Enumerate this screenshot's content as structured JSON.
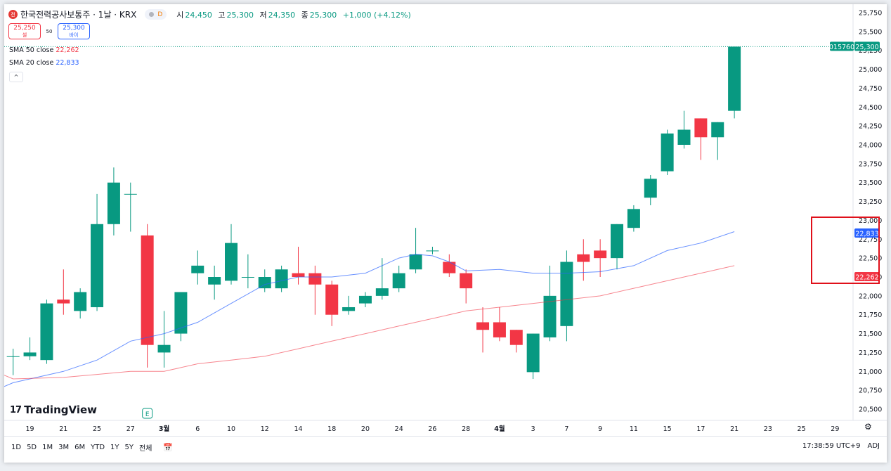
{
  "header": {
    "logo_text": "전",
    "symbol_title": "한국전력공사보통주 · 1날 · KRX",
    "delay_label": "D",
    "ohlc": [
      {
        "label": "시",
        "value": "24,450"
      },
      {
        "label": "고",
        "value": "25,300"
      },
      {
        "label": "저",
        "value": "24,350"
      },
      {
        "label": "종",
        "value": "25,300"
      }
    ],
    "change": "+1,000 (+4.12%)"
  },
  "trade": {
    "sell_price": "25,250",
    "sell_label": "셀",
    "spread": "50",
    "buy_price": "25,300",
    "buy_label": "바이"
  },
  "indicators": [
    {
      "name": "SMA 50 close",
      "value": "22,262",
      "color": "#f23645"
    },
    {
      "name": "SMA 20 close",
      "value": "22,833",
      "color": "#2962ff"
    }
  ],
  "collapse_glyph": "^",
  "last_price_label": {
    "code": "015760",
    "price": "25,300"
  },
  "sma_labels": {
    "sma20": "22,833",
    "sma50": "22,262"
  },
  "event_marker": "E",
  "logo": {
    "mark": "17",
    "text": "TradingView"
  },
  "footer": {
    "ranges": [
      "1D",
      "5D",
      "1M",
      "3M",
      "6M",
      "YTD",
      "1Y",
      "5Y",
      "전체"
    ],
    "time": "17:38:59 UTC+9",
    "adj": "ADJ"
  },
  "colors": {
    "up": "#089981",
    "down": "#f23645",
    "sma20": "#2962ff",
    "sma50": "#f23645"
  },
  "chart_data": {
    "type": "candlestick",
    "ylim": [
      20300,
      25800
    ],
    "y_ticks": [
      20500,
      20750,
      21000,
      21250,
      21500,
      21750,
      22000,
      22250,
      22500,
      22750,
      23000,
      23250,
      23500,
      23750,
      24000,
      24250,
      24500,
      24750,
      25000,
      25250,
      25500,
      25750
    ],
    "x_tick_labels": [
      {
        "label": "19",
        "i": 1
      },
      {
        "label": "21",
        "i": 3
      },
      {
        "label": "25",
        "i": 5
      },
      {
        "label": "27",
        "i": 7
      },
      {
        "label": "3월",
        "i": 9
      },
      {
        "label": "6",
        "i": 11
      },
      {
        "label": "10",
        "i": 13
      },
      {
        "label": "12",
        "i": 15
      },
      {
        "label": "14",
        "i": 17
      },
      {
        "label": "18",
        "i": 19
      },
      {
        "label": "20",
        "i": 21
      },
      {
        "label": "24",
        "i": 23
      },
      {
        "label": "26",
        "i": 25
      },
      {
        "label": "28",
        "i": 27
      },
      {
        "label": "4월",
        "i": 29
      },
      {
        "label": "3",
        "i": 31
      },
      {
        "label": "7",
        "i": 33
      },
      {
        "label": "9",
        "i": 35
      },
      {
        "label": "11",
        "i": 37
      },
      {
        "label": "15",
        "i": 39
      },
      {
        "label": "17",
        "i": 41
      },
      {
        "label": "21",
        "i": 43
      },
      {
        "label": "23",
        "i": 45
      },
      {
        "label": "25",
        "i": 47
      },
      {
        "label": "29",
        "i": 49
      }
    ],
    "candles": [
      {
        "i": 0,
        "o": 21200,
        "h": 21300,
        "l": 20950,
        "c": 21200
      },
      {
        "i": 1,
        "o": 21200,
        "h": 21450,
        "l": 21150,
        "c": 21250
      },
      {
        "i": 2,
        "o": 21150,
        "h": 21950,
        "l": 21100,
        "c": 21900
      },
      {
        "i": 3,
        "o": 21950,
        "h": 22350,
        "l": 21750,
        "c": 21900
      },
      {
        "i": 4,
        "o": 21800,
        "h": 22100,
        "l": 21700,
        "c": 22050
      },
      {
        "i": 5,
        "o": 21850,
        "h": 23350,
        "l": 21800,
        "c": 22950
      },
      {
        "i": 6,
        "o": 22950,
        "h": 23700,
        "l": 22800,
        "c": 23500
      },
      {
        "i": 7,
        "o": 23350,
        "h": 23500,
        "l": 22850,
        "c": 23350
      },
      {
        "i": 8,
        "o": 22800,
        "h": 22950,
        "l": 21050,
        "c": 21350
      },
      {
        "i": 9,
        "o": 21250,
        "h": 21800,
        "l": 21050,
        "c": 21350
      },
      {
        "i": 10,
        "o": 21500,
        "h": 22050,
        "l": 21400,
        "c": 22050
      },
      {
        "i": 11,
        "o": 22300,
        "h": 22600,
        "l": 22150,
        "c": 22400
      },
      {
        "i": 12,
        "o": 22150,
        "h": 22400,
        "l": 21950,
        "c": 22250
      },
      {
        "i": 13,
        "o": 22200,
        "h": 22950,
        "l": 22150,
        "c": 22700
      },
      {
        "i": 14,
        "o": 22250,
        "h": 22550,
        "l": 22100,
        "c": 22250
      },
      {
        "i": 15,
        "o": 22100,
        "h": 22350,
        "l": 22050,
        "c": 22250
      },
      {
        "i": 16,
        "o": 22100,
        "h": 22400,
        "l": 22050,
        "c": 22350
      },
      {
        "i": 17,
        "o": 22300,
        "h": 22650,
        "l": 22150,
        "c": 22250
      },
      {
        "i": 18,
        "o": 22300,
        "h": 22400,
        "l": 21750,
        "c": 22150
      },
      {
        "i": 19,
        "o": 22150,
        "h": 22200,
        "l": 21600,
        "c": 21750
      },
      {
        "i": 20,
        "o": 21800,
        "h": 22000,
        "l": 21750,
        "c": 21850
      },
      {
        "i": 21,
        "o": 21900,
        "h": 22050,
        "l": 21850,
        "c": 22000
      },
      {
        "i": 22,
        "o": 22000,
        "h": 22500,
        "l": 21950,
        "c": 22100
      },
      {
        "i": 23,
        "o": 22100,
        "h": 22400,
        "l": 22050,
        "c": 22300
      },
      {
        "i": 24,
        "o": 22350,
        "h": 22900,
        "l": 22300,
        "c": 22550
      },
      {
        "i": 25,
        "o": 22600,
        "h": 22650,
        "l": 22550,
        "c": 22600
      },
      {
        "i": 26,
        "o": 22450,
        "h": 22550,
        "l": 22250,
        "c": 22300
      },
      {
        "i": 27,
        "o": 22300,
        "h": 22350,
        "l": 21900,
        "c": 22100
      },
      {
        "i": 28,
        "o": 21650,
        "h": 21850,
        "l": 21250,
        "c": 21550
      },
      {
        "i": 29,
        "o": 21650,
        "h": 21850,
        "l": 21400,
        "c": 21450
      },
      {
        "i": 30,
        "o": 21550,
        "h": 21550,
        "l": 21250,
        "c": 21350
      },
      {
        "i": 31,
        "o": 20990,
        "h": 21500,
        "l": 20900,
        "c": 21500
      },
      {
        "i": 32,
        "o": 21450,
        "h": 22400,
        "l": 21400,
        "c": 22000
      },
      {
        "i": 33,
        "o": 21600,
        "h": 22600,
        "l": 21400,
        "c": 22450
      },
      {
        "i": 34,
        "o": 22550,
        "h": 22750,
        "l": 22200,
        "c": 22450
      },
      {
        "i": 35,
        "o": 22600,
        "h": 22750,
        "l": 22250,
        "c": 22500
      },
      {
        "i": 36,
        "o": 22500,
        "h": 22950,
        "l": 22350,
        "c": 22950
      },
      {
        "i": 37,
        "o": 22900,
        "h": 23200,
        "l": 22850,
        "c": 23150
      },
      {
        "i": 38,
        "o": 23300,
        "h": 23600,
        "l": 23200,
        "c": 23550
      },
      {
        "i": 39,
        "o": 23650,
        "h": 24200,
        "l": 23600,
        "c": 24150
      },
      {
        "i": 40,
        "o": 24000,
        "h": 24450,
        "l": 23950,
        "c": 24200
      },
      {
        "i": 41,
        "o": 24350,
        "h": 24350,
        "l": 23800,
        "c": 24100
      },
      {
        "i": 42,
        "o": 24100,
        "h": 24300,
        "l": 23800,
        "c": 24300
      },
      {
        "i": 43,
        "o": 24450,
        "h": 25300,
        "l": 24350,
        "c": 25300
      }
    ],
    "series": [
      {
        "name": "SMA 20 close",
        "x": [
          0,
          3,
          5,
          7,
          9,
          11,
          13,
          15,
          17,
          19,
          21,
          23,
          24,
          25,
          26,
          27,
          29,
          31,
          33,
          35,
          37,
          39,
          41,
          43
        ],
        "values": [
          20850,
          21000,
          21150,
          21400,
          21500,
          21650,
          21900,
          22150,
          22250,
          22250,
          22300,
          22500,
          22550,
          22530,
          22450,
          22330,
          22350,
          22300,
          22300,
          22320,
          22400,
          22600,
          22700,
          22850
        ]
      },
      {
        "name": "SMA 50 close",
        "x": [
          0,
          3,
          5,
          7,
          9,
          11,
          13,
          15,
          17,
          19,
          21,
          23,
          25,
          27,
          29,
          31,
          33,
          35,
          37,
          39,
          41,
          43
        ],
        "values": [
          20900,
          20920,
          20960,
          21000,
          21000,
          21100,
          21150,
          21200,
          21300,
          21400,
          21500,
          21600,
          21700,
          21800,
          21850,
          21900,
          21950,
          22000,
          22100,
          22200,
          22300,
          22400
        ]
      }
    ],
    "last_price": 25300
  }
}
